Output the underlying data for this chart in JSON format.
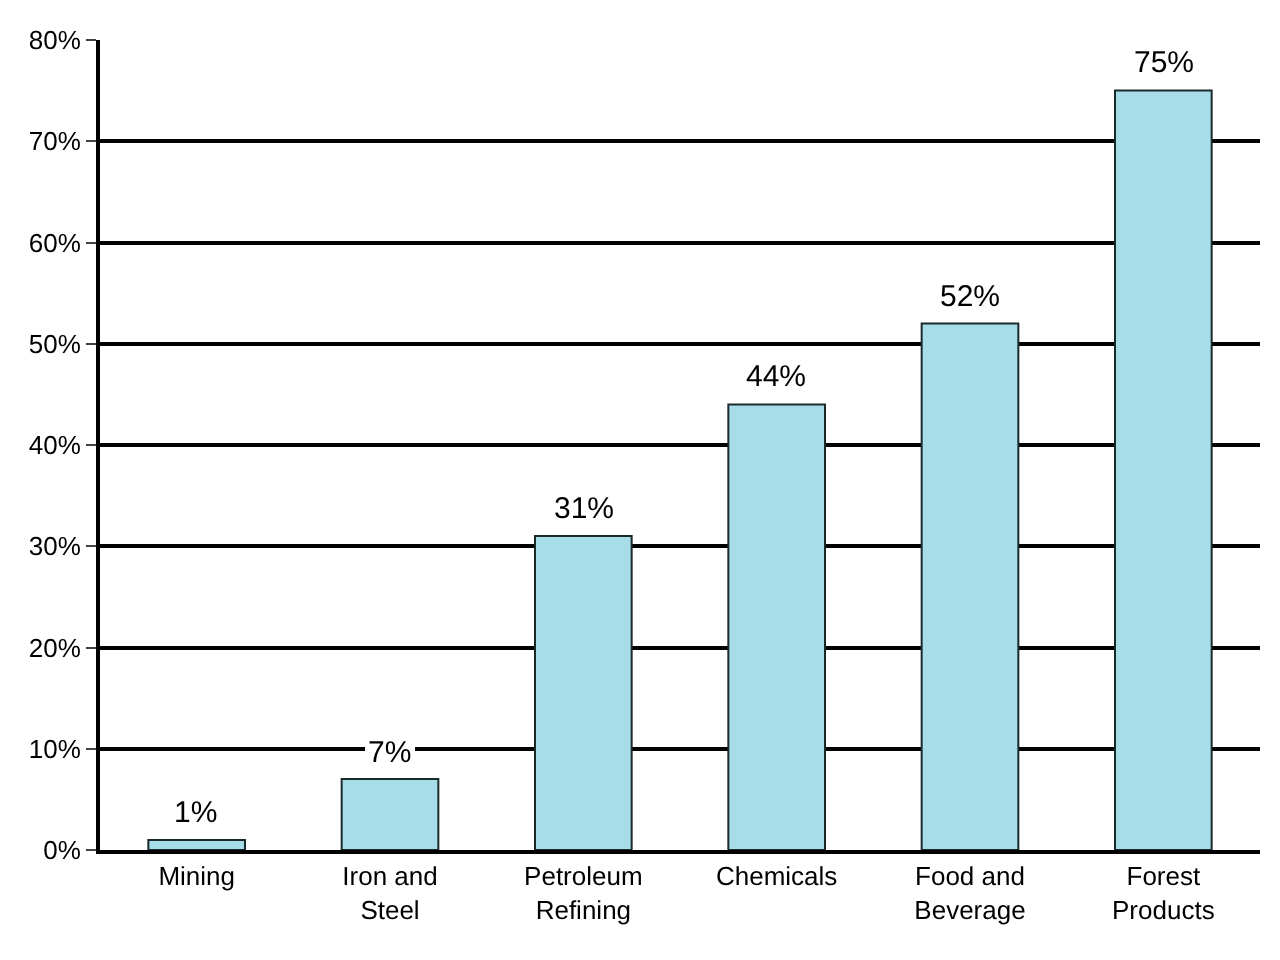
{
  "chart_data": {
    "type": "bar",
    "categories": [
      "Mining",
      "Iron and\nSteel",
      "Petroleum\nRefining",
      "Chemicals",
      "Food and\nBeverage",
      "Forest\nProducts"
    ],
    "values": [
      1,
      7,
      31,
      44,
      52,
      75
    ],
    "value_labels": [
      "1%",
      "7%",
      "31%",
      "44%",
      "52%",
      "75%"
    ],
    "color": "#a6dde8",
    "ylim": [
      0,
      80
    ],
    "yticks": [
      {
        "value": 0,
        "label": "0%"
      },
      {
        "value": 10,
        "label": "10%"
      },
      {
        "value": 20,
        "label": "20%"
      },
      {
        "value": 30,
        "label": "30%"
      },
      {
        "value": 40,
        "label": "40%"
      },
      {
        "value": 50,
        "label": "50%"
      },
      {
        "value": 60,
        "label": "60%"
      },
      {
        "value": 70,
        "label": "70%"
      },
      {
        "value": 80,
        "label": "80%"
      }
    ],
    "grid": "y"
  }
}
